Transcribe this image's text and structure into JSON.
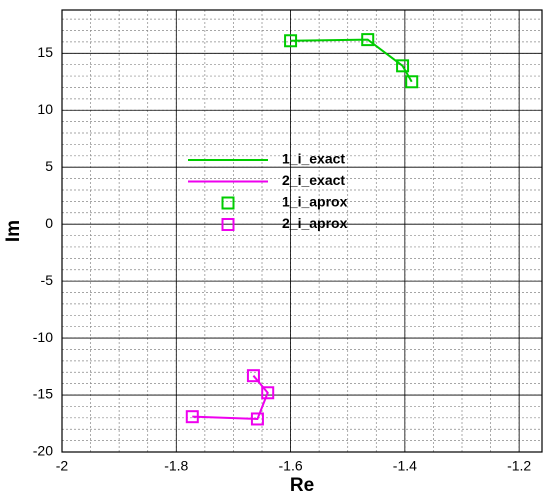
{
  "chart_data": {
    "type": "line",
    "x_label": "Re",
    "y_label": "Im",
    "xlim": [
      -2,
      -1.16
    ],
    "ylim": [
      -20,
      18.8
    ],
    "xticks": [
      -2,
      -1.8,
      -1.6,
      -1.4,
      -1.2
    ],
    "yticks": [
      -20,
      -15,
      -10,
      -5,
      0,
      5,
      10,
      15
    ],
    "x_minor_step": 0.05,
    "y_minor_step": 1,
    "grid": true,
    "series": [
      {
        "name": "1_i_exact",
        "color": "#00cc00",
        "mode": "line",
        "x": [
          -1.6,
          -1.465,
          -1.404,
          -1.388
        ],
        "y": [
          16.1,
          16.2,
          13.9,
          12.5
        ]
      },
      {
        "name": "2_i_exact",
        "color": "#ee00ee",
        "mode": "line",
        "x": [
          -1.772,
          -1.658,
          -1.64,
          -1.665
        ],
        "y": [
          -16.9,
          -17.1,
          -14.8,
          -13.3
        ]
      },
      {
        "name": "1_i_aprox",
        "color": "#00cc00",
        "mode": "marker",
        "x": [
          -1.6,
          -1.465,
          -1.404,
          -1.388
        ],
        "y": [
          16.1,
          16.2,
          13.9,
          12.5
        ]
      },
      {
        "name": "2_i_aprox",
        "color": "#ee00ee",
        "mode": "marker",
        "x": [
          -1.772,
          -1.658,
          -1.64,
          -1.665
        ],
        "y": [
          -16.9,
          -17.1,
          -14.8,
          -13.3
        ]
      }
    ]
  }
}
